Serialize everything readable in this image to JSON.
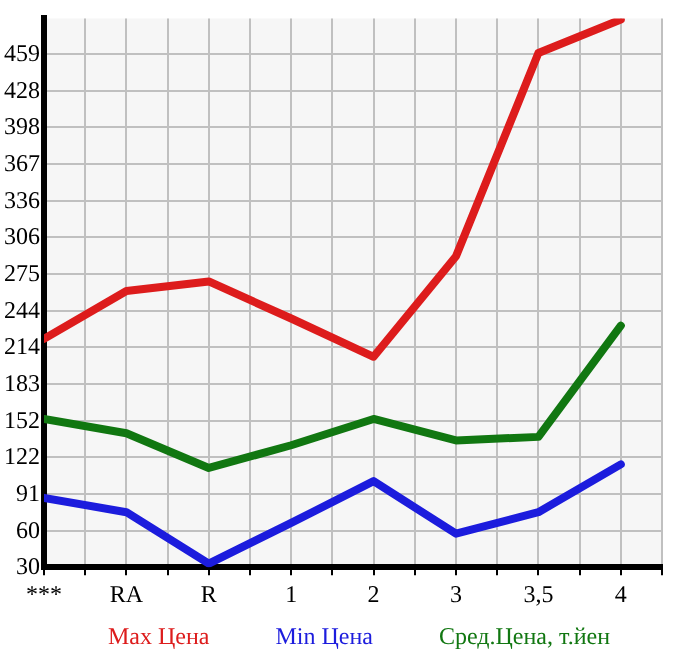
{
  "chart_data": {
    "type": "line",
    "categories": [
      "***",
      "RA",
      "R",
      "1",
      "2",
      "3",
      "3,5",
      "4"
    ],
    "series": [
      {
        "name": "Max Цена",
        "color": "#dd1c1c",
        "values": [
          221,
          261,
          269,
          238,
          206,
          290,
          460,
          488
        ]
      },
      {
        "name": "Min Цена",
        "color": "#1c1cdd",
        "values": [
          88,
          76,
          33,
          67,
          102,
          58,
          76,
          116
        ]
      },
      {
        "name": "Сред.Цена, т.йен",
        "color": "#117711",
        "values": [
          154,
          142,
          113,
          132,
          154,
          136,
          139,
          232
        ]
      }
    ],
    "ylim": [
      30,
      489
    ],
    "yticks": [
      30,
      60,
      91,
      122,
      152,
      183,
      214,
      244,
      275,
      306,
      336,
      367,
      398,
      428,
      459
    ],
    "grid": true,
    "legend": "bottom",
    "marker": "none",
    "line_style": "solid"
  }
}
